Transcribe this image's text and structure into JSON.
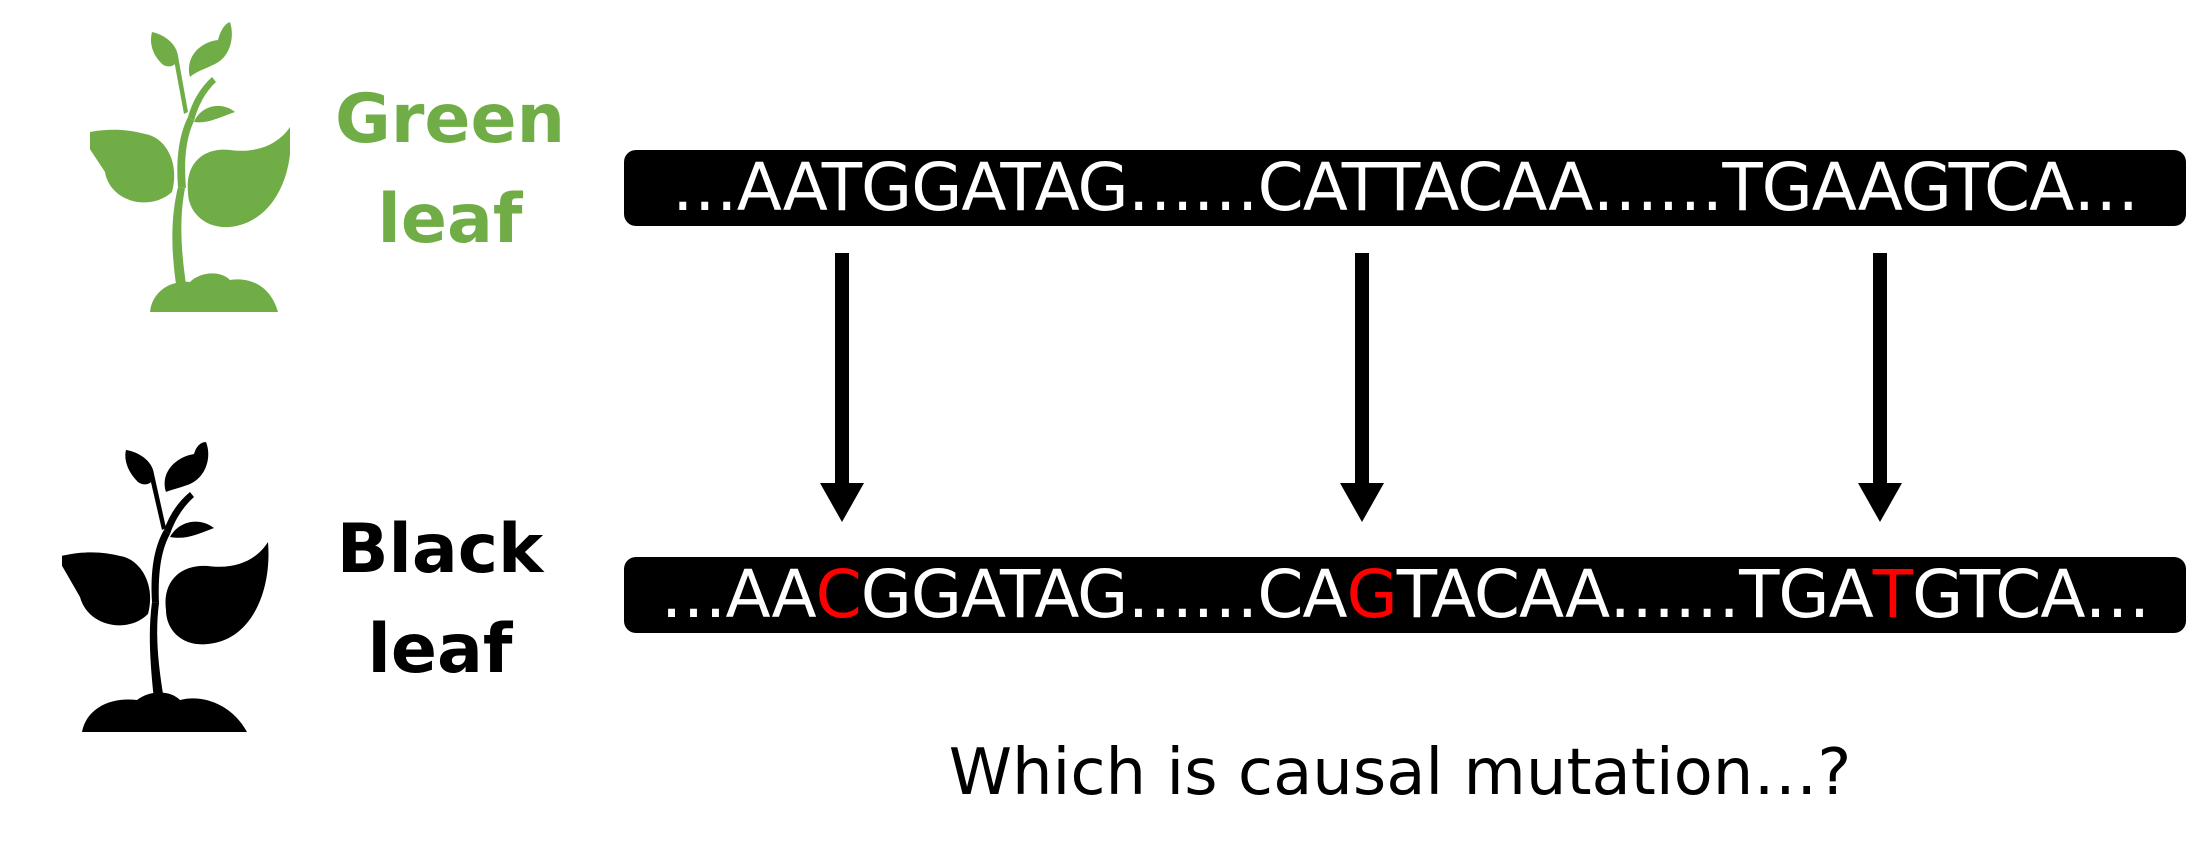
{
  "colors": {
    "green": "#70ad47",
    "black": "#000000",
    "mutation": "#ff0000"
  },
  "plants": {
    "green": {
      "icon": "plant-icon",
      "label_line1": "Green",
      "label_line2": "leaf"
    },
    "black": {
      "icon": "plant-icon",
      "label_line1": "Black",
      "label_line2": "leaf"
    }
  },
  "sequences": {
    "top": [
      {
        "text": "…AATGGATAG……CATTACAA……TGAAGTCA…",
        "mutated": false
      }
    ],
    "bottom": [
      {
        "text": "…AA",
        "mutated": false
      },
      {
        "text": "C",
        "mutated": true
      },
      {
        "text": "GGATAG……CA",
        "mutated": false
      },
      {
        "text": "G",
        "mutated": true
      },
      {
        "text": "TACAA……TGA",
        "mutated": false
      },
      {
        "text": "T",
        "mutated": true
      },
      {
        "text": "GTCA…",
        "mutated": false
      }
    ]
  },
  "question": "Which is causal mutation…?"
}
